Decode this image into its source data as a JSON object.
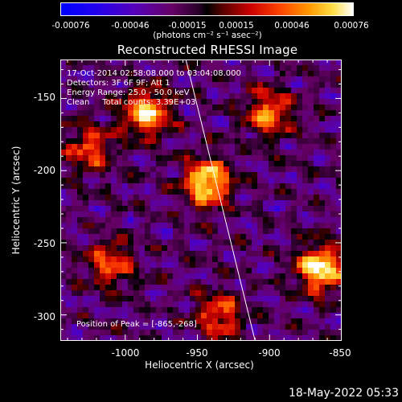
{
  "colorbar": {
    "ticks": [
      "-0.00076",
      "-0.00046",
      "-0.00015",
      "0.00015",
      "0.00046",
      "0.00076"
    ],
    "unit_label": "(photons cm⁻² s⁻¹ asec⁻²)"
  },
  "chart_data": {
    "type": "heatmap",
    "title": "Reconstructed RHESSI Image",
    "xlabel": "Heliocentric X (arcsec)",
    "ylabel": "Heliocentric Y (arcsec)",
    "xlim": [
      -1045,
      -850
    ],
    "ylim": [
      -318,
      -123
    ],
    "xticks": [
      "-1000",
      "-950",
      "-900",
      "-850"
    ],
    "yticks": [
      "-150",
      "-200",
      "-250",
      "-300"
    ],
    "colormap": "rhessi-color-table-5",
    "value_range": [
      -0.00076,
      0.00076
    ],
    "grid": false,
    "limb_line": {
      "x": [
        -958,
        -910
      ],
      "y": [
        -123,
        -318
      ]
    },
    "bright_regions": [
      {
        "x": -985,
        "y": -160,
        "level": 0.9
      },
      {
        "x": -943,
        "y": -208,
        "level": 1.0
      },
      {
        "x": -865,
        "y": -268,
        "level": 1.0
      },
      {
        "x": -1025,
        "y": -185,
        "level": 0.6
      },
      {
        "x": -1010,
        "y": -265,
        "level": 0.6
      },
      {
        "x": -900,
        "y": -160,
        "level": 0.7
      },
      {
        "x": -935,
        "y": -300,
        "level": 0.6
      }
    ]
  },
  "annotations": [
    "17-Oct-2014 02:58:08.000 to 03:04:08.000",
    "Detectors: 3F 6F 9F; Att 1",
    "Energy Range: 25.0 - 50.0 keV",
    "Clean     Total counts: 3.39E+03"
  ],
  "peak_label": "Position of Peak = [-865,-268]",
  "footer_date": "18-May-2022 05:33"
}
